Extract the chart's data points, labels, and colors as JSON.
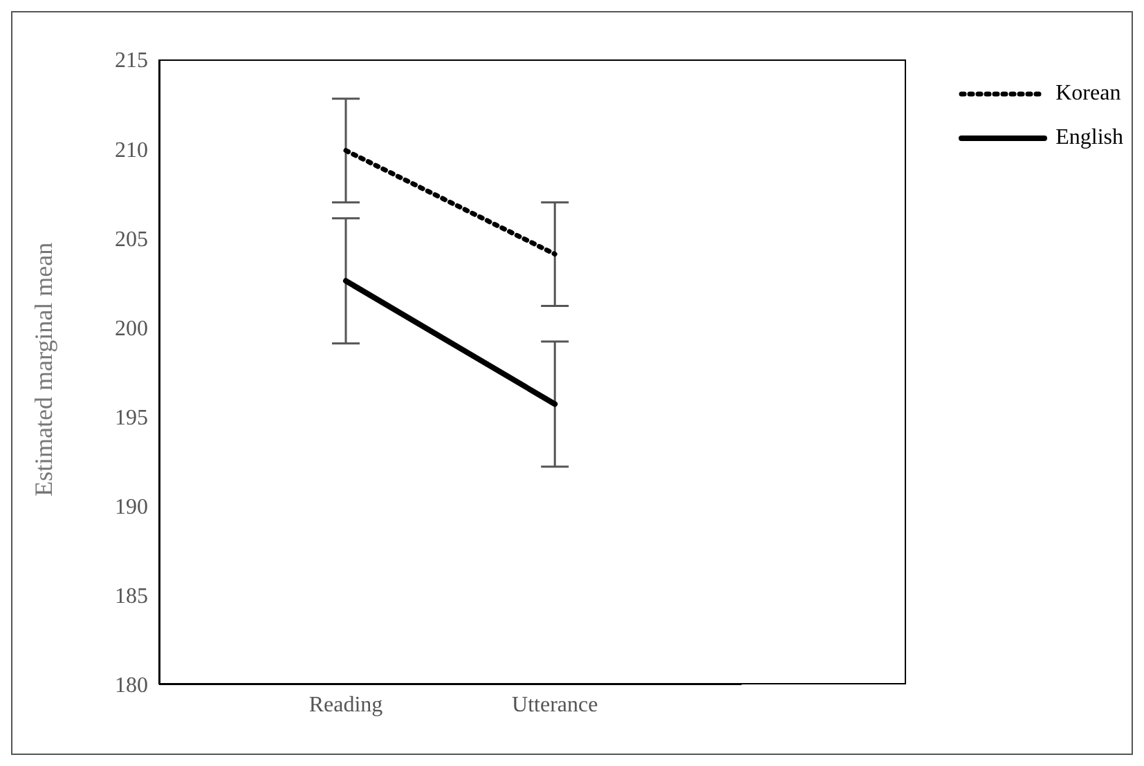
{
  "chart_data": {
    "type": "line",
    "ylabel": "Estimated marginal mean",
    "categories": [
      "Reading",
      "Utterance"
    ],
    "series": [
      {
        "name": "Korean",
        "color": "#000000",
        "values": [
          209.9,
          204.1
        ],
        "errors": [
          2.9,
          2.9
        ],
        "line_style": "dotted"
      },
      {
        "name": "English",
        "color": "#000000",
        "values": [
          202.6,
          195.7
        ],
        "errors": [
          3.5,
          3.5
        ],
        "line_style": "solid"
      }
    ],
    "ylim": [
      180,
      215
    ],
    "yticks": [
      180,
      185,
      190,
      195,
      200,
      205,
      210,
      215
    ],
    "grid": false,
    "legend": "top right",
    "marker": "none"
  }
}
